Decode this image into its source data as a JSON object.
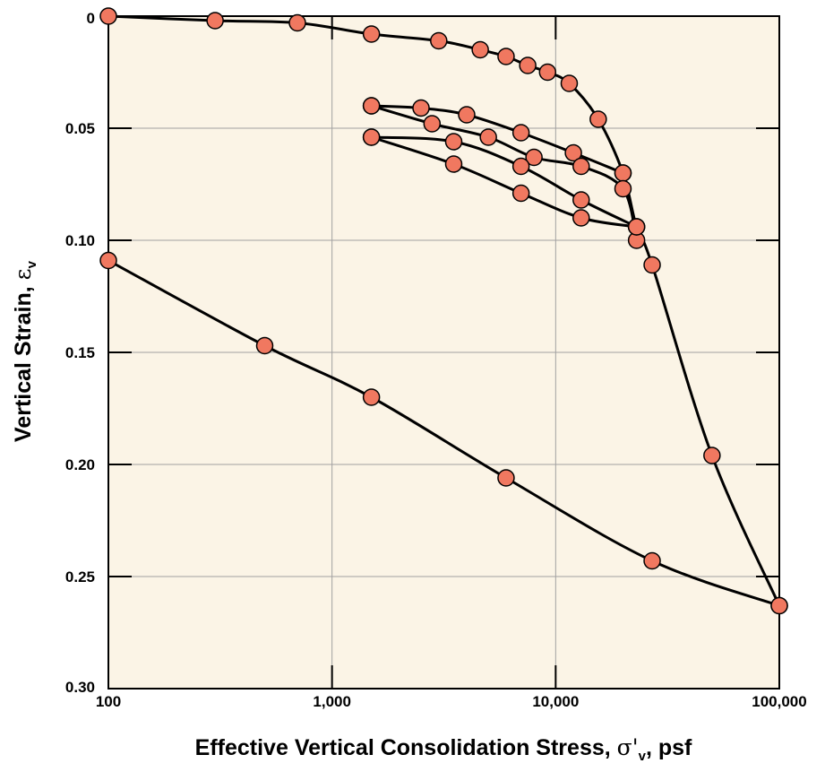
{
  "chart_data": {
    "type": "scatter",
    "title": "",
    "xlabel": "Effective Vertical Consolidation Stress, σ'v, psf",
    "xlabel_parts": {
      "main": "Effective Vertical Consolidation Stress, ",
      "symbol": "σ'",
      "subscript": "v",
      "suffix": ", psf"
    },
    "ylabel": "Vertical Strain, εv",
    "ylabel_parts": {
      "main": "Vertical Strain, ",
      "symbol": "ε",
      "subscript": "v"
    },
    "x_scale": "log",
    "xlim": [
      100,
      100000
    ],
    "ylim": [
      0,
      0.3
    ],
    "y_inverted": true,
    "grid": true,
    "legend": "none",
    "x_ticks": [
      {
        "value": 100,
        "label": "100"
      },
      {
        "value": 1000,
        "label": "1,000"
      },
      {
        "value": 10000,
        "label": "10,000"
      },
      {
        "value": 100000,
        "label": "100,000"
      }
    ],
    "y_ticks": [
      {
        "value": 0,
        "label": "0"
      },
      {
        "value": 0.05,
        "label": "0.05"
      },
      {
        "value": 0.1,
        "label": "0.10"
      },
      {
        "value": 0.15,
        "label": "0.15"
      },
      {
        "value": 0.2,
        "label": "0.20"
      },
      {
        "value": 0.25,
        "label": "0.25"
      },
      {
        "value": 0.3,
        "label": "0.30"
      }
    ],
    "colors": {
      "plot_background": "#fbf4e6",
      "marker_fill": "#f07860",
      "marker_stroke": "#000000",
      "line": "#000000",
      "grid": "#a0a0a0"
    },
    "series": [
      {
        "x": [
          100,
          300,
          700,
          1500,
          3000,
          4600,
          6000,
          7500,
          9200,
          11500,
          15500,
          20000,
          23000,
          27000,
          50000,
          100000
        ],
        "y": [
          0.0,
          0.002,
          0.003,
          0.008,
          0.011,
          0.015,
          0.018,
          0.022,
          0.025,
          0.03,
          0.046,
          0.07,
          0.094,
          0.111,
          0.196,
          0.263
        ]
      },
      {
        "x": [
          1500,
          2500,
          4000,
          7000,
          12000,
          20000
        ],
        "y": [
          0.04,
          0.041,
          0.044,
          0.052,
          0.061,
          0.07
        ]
      },
      {
        "x": [
          1500,
          2800,
          5000,
          8000,
          13000,
          20000,
          23000
        ],
        "y": [
          0.04,
          0.048,
          0.054,
          0.063,
          0.067,
          0.077,
          0.1
        ]
      },
      {
        "x": [
          1500,
          3500,
          7000,
          13000,
          23000
        ],
        "y": [
          0.054,
          0.056,
          0.067,
          0.082,
          0.094
        ]
      },
      {
        "x": [
          1500,
          3500,
          7000,
          13000,
          23000
        ],
        "y": [
          0.054,
          0.066,
          0.079,
          0.09,
          0.094
        ]
      },
      {
        "x": [
          100,
          500,
          1500,
          6000,
          27000,
          100000
        ],
        "y": [
          0.109,
          0.147,
          0.17,
          0.206,
          0.243,
          0.263
        ]
      }
    ]
  }
}
